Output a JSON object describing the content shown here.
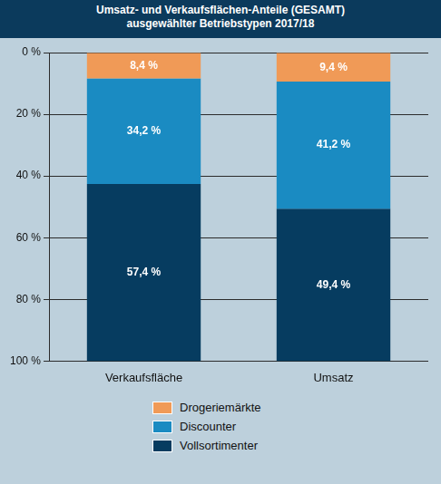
{
  "chart_data": {
    "type": "bar",
    "title": "Umsatz- und Verkaufsflächen-Anteile (GESAMT)",
    "subtitle": "ausgewählter Betriebstypen 2017/18",
    "categories": [
      "Verkaufsfläche",
      "Umsatz"
    ],
    "series": [
      {
        "name": "Drogeriemärkte",
        "color": "#f09a57",
        "values": [
          8.4,
          9.4
        ],
        "value_labels": [
          "8,4 %",
          "9,4 %"
        ]
      },
      {
        "name": "Discounter",
        "color": "#1a8bc2",
        "values": [
          34.2,
          41.2
        ],
        "value_labels": [
          "34,2 %",
          "41,2 %"
        ]
      },
      {
        "name": "Vollsortimenter",
        "color": "#063c60",
        "values": [
          57.4,
          49.4
        ],
        "value_labels": [
          "57,4 %",
          "49,4 %"
        ]
      }
    ],
    "ylim": [
      0,
      100
    ],
    "yticks": [
      {
        "value": 0,
        "label": "0 %"
      },
      {
        "value": 20,
        "label": "20 %"
      },
      {
        "value": 40,
        "label": "40 %"
      },
      {
        "value": 60,
        "label": "60 %"
      },
      {
        "value": 80,
        "label": "80 %"
      },
      {
        "value": 100,
        "label": "100 %"
      }
    ],
    "stacked": true,
    "data_labels": true,
    "grid": true,
    "legend": "bottom"
  }
}
